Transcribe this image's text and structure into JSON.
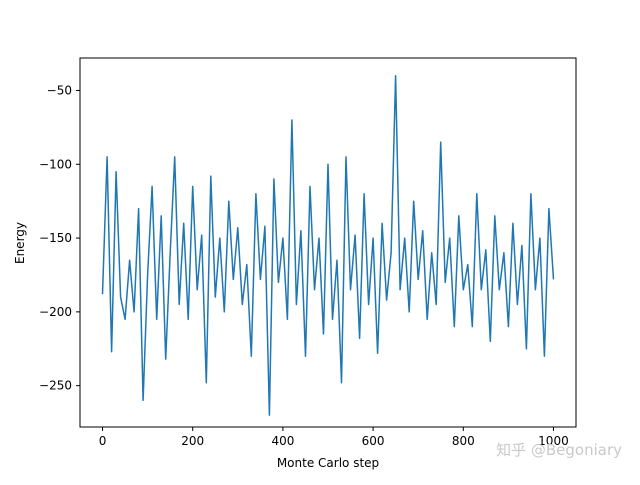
{
  "chart_data": {
    "type": "line",
    "title": "",
    "xlabel": "Monte Carlo step",
    "ylabel": "Energy",
    "xlim": [
      -50,
      1050
    ],
    "ylim": [
      -278,
      -28
    ],
    "xticks": [
      0,
      200,
      400,
      600,
      800,
      1000
    ],
    "yticks": [
      -250,
      -200,
      -150,
      -100,
      -50
    ],
    "xtick_labels": [
      "0",
      "200",
      "400",
      "600",
      "800",
      "1000"
    ],
    "ytick_labels": [
      "−250",
      "−200",
      "−150",
      "−100",
      "−50"
    ],
    "grid": false,
    "series": [
      {
        "color": "#1f77b4",
        "x": [
          0,
          10,
          20,
          30,
          40,
          50,
          60,
          70,
          80,
          90,
          100,
          110,
          120,
          130,
          140,
          150,
          160,
          170,
          180,
          190,
          200,
          210,
          220,
          230,
          240,
          250,
          260,
          270,
          280,
          290,
          300,
          310,
          320,
          330,
          340,
          350,
          360,
          370,
          380,
          390,
          400,
          410,
          420,
          430,
          440,
          450,
          460,
          470,
          480,
          490,
          500,
          510,
          520,
          530,
          540,
          550,
          560,
          570,
          580,
          590,
          600,
          610,
          620,
          630,
          640,
          650,
          660,
          670,
          680,
          690,
          700,
          710,
          720,
          730,
          740,
          750,
          760,
          770,
          780,
          790,
          800,
          810,
          820,
          830,
          840,
          850,
          860,
          870,
          880,
          890,
          900,
          910,
          920,
          930,
          940,
          950,
          960,
          970,
          980,
          990,
          1000
        ],
        "y": [
          -188,
          -95,
          -227,
          -105,
          -190,
          -205,
          -165,
          -200,
          -130,
          -260,
          -175,
          -115,
          -205,
          -135,
          -232,
          -160,
          -95,
          -195,
          -140,
          -205,
          -115,
          -185,
          -148,
          -248,
          -108,
          -190,
          -150,
          -200,
          -125,
          -178,
          -143,
          -195,
          -168,
          -230,
          -120,
          -178,
          -142,
          -270,
          -110,
          -180,
          -150,
          -205,
          -70,
          -195,
          -145,
          -230,
          -115,
          -185,
          -150,
          -215,
          -100,
          -205,
          -165,
          -248,
          -95,
          -185,
          -148,
          -218,
          -120,
          -195,
          -150,
          -228,
          -140,
          -192,
          -160,
          -40,
          -185,
          -150,
          -200,
          -125,
          -178,
          -145,
          -205,
          -160,
          -195,
          -85,
          -180,
          -150,
          -210,
          -135,
          -185,
          -168,
          -210,
          -120,
          -185,
          -158,
          -220,
          -135,
          -185,
          -160,
          -210,
          -140,
          -195,
          -155,
          -225,
          -120,
          -185,
          -150,
          -230,
          -130,
          -178
        ]
      }
    ]
  },
  "watermark": "知乎 @Begoniary"
}
